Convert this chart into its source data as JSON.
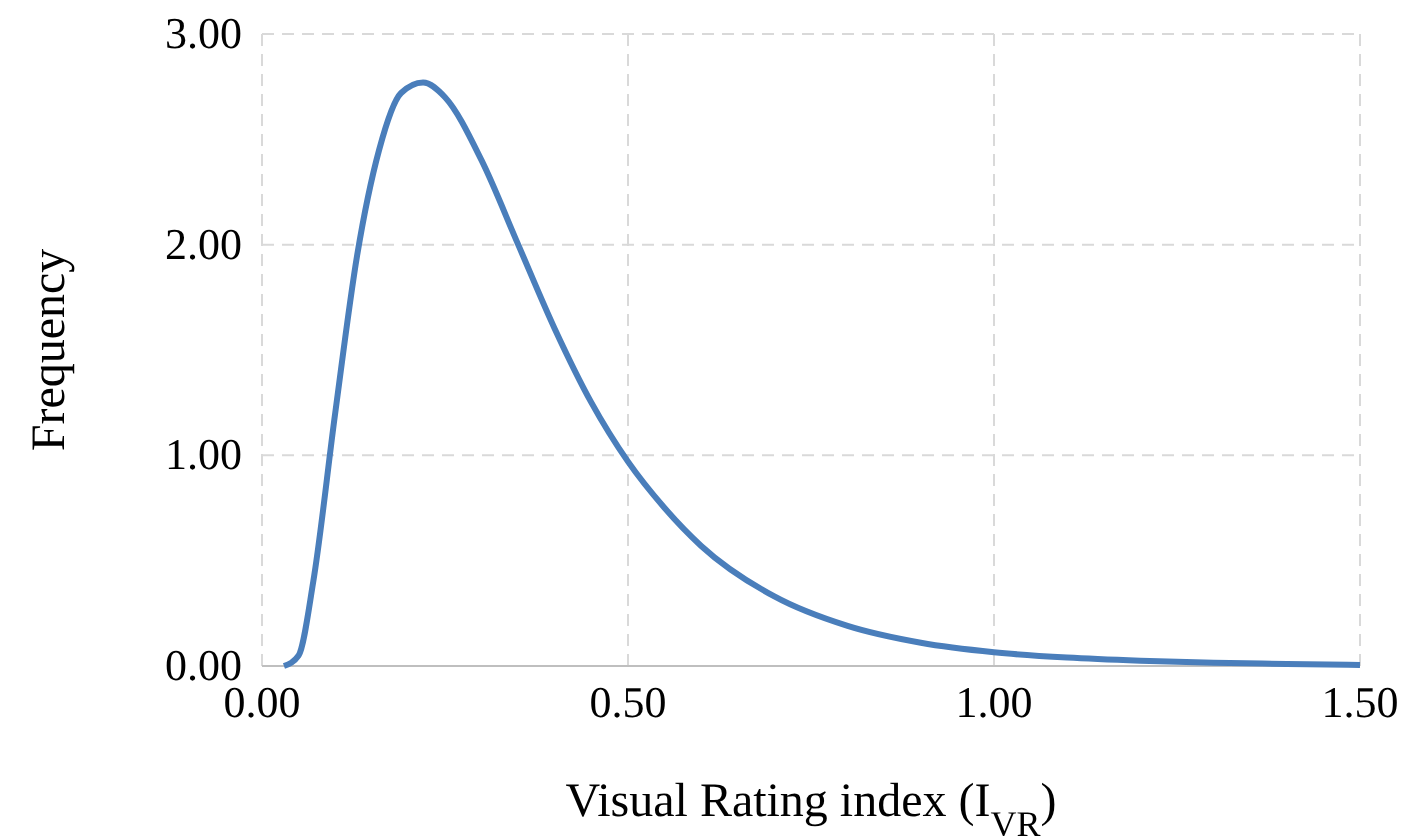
{
  "chart_data": {
    "type": "line",
    "xlabel": "Visual Rating index (I$_{VR}$)",
    "ylabel": "Frequency",
    "xlim": [
      0,
      1.5
    ],
    "ylim": [
      0,
      3
    ],
    "xticks": [
      {
        "value": 0,
        "label": "0.00"
      },
      {
        "value": 0.5,
        "label": "0.50"
      },
      {
        "value": 1,
        "label": "1.00"
      },
      {
        "value": 1.5,
        "label": "1.50"
      }
    ],
    "yticks": [
      {
        "value": 0,
        "label": "0.00"
      },
      {
        "value": 1,
        "label": "1.00"
      },
      {
        "value": 2,
        "label": "2.00"
      },
      {
        "value": 3,
        "label": "3.00"
      }
    ],
    "grid": true,
    "line_style": "solid",
    "series": [
      {
        "color": "#4a7ebb",
        "x": [
          0.03,
          0.05,
          0.07,
          0.1,
          0.13,
          0.16,
          0.19,
          0.22,
          0.25,
          0.3,
          0.35,
          0.4,
          0.45,
          0.5,
          0.55,
          0.6,
          0.7,
          0.8,
          0.9,
          1.0,
          1.1,
          1.2,
          1.3,
          1.4,
          1.5
        ],
        "values": [
          0,
          0.05,
          0.4,
          1.2,
          1.95,
          2.45,
          2.72,
          2.77,
          2.7,
          2.4,
          2.0,
          1.6,
          1.25,
          0.97,
          0.75,
          0.57,
          0.33,
          0.19,
          0.11,
          0.065,
          0.04,
          0.025,
          0.015,
          0.01,
          0.005
        ]
      }
    ]
  }
}
